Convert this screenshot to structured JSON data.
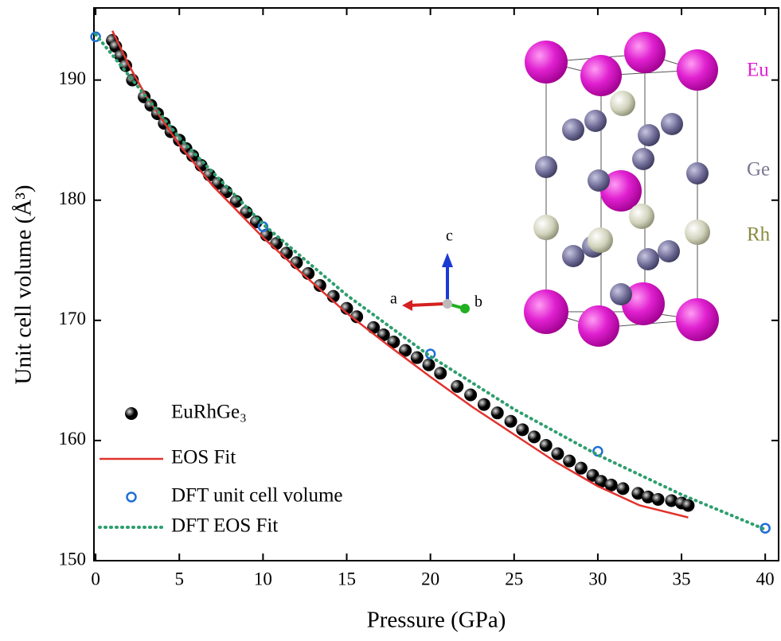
{
  "chart_data": {
    "type": "scatter",
    "xlabel": "Pressure (GPa)",
    "ylabel": "Unit  cell volume (Å³)",
    "xlim": [
      -0.1,
      40.8
    ],
    "ylim": [
      150,
      196
    ],
    "xticks": [
      0,
      5,
      10,
      15,
      20,
      25,
      30,
      35,
      40
    ],
    "yticks": [
      150,
      160,
      170,
      180,
      190
    ],
    "legend": "lower left",
    "series": [
      {
        "name": "EuRhGe₃",
        "style": "sphere",
        "color": "#000000",
        "x": [
          1.0,
          1.2,
          1.5,
          1.8,
          2.2,
          2.9,
          3.3,
          3.7,
          4.1,
          4.5,
          5.0,
          5.4,
          5.8,
          6.3,
          6.8,
          7.3,
          7.8,
          8.4,
          9.0,
          9.6,
          10.2,
          10.8,
          11.4,
          12.0,
          12.7,
          13.4,
          14.2,
          15.0,
          15.6,
          16.6,
          17.2,
          17.8,
          18.5,
          19.2,
          19.9,
          20.6,
          21.6,
          22.4,
          23.2,
          24.0,
          24.8,
          25.5,
          26.2,
          26.9,
          27.6,
          28.3,
          29.0,
          29.7,
          30.2,
          30.8,
          31.5,
          32.4,
          33.0,
          33.6,
          34.4,
          35.0,
          35.4
        ],
        "values": [
          193.3,
          192.8,
          192.0,
          191.2,
          190.0,
          188.6,
          187.9,
          187.2,
          186.4,
          185.7,
          185.0,
          184.3,
          183.7,
          182.9,
          182.1,
          181.4,
          180.7,
          179.9,
          179.0,
          178.2,
          177.1,
          176.4,
          175.6,
          174.8,
          173.9,
          172.9,
          172.0,
          171.0,
          170.3,
          169.4,
          168.8,
          168.2,
          167.5,
          166.9,
          166.3,
          165.6,
          164.5,
          163.8,
          163.0,
          162.3,
          161.6,
          160.9,
          160.3,
          159.6,
          158.9,
          158.3,
          157.7,
          157.1,
          156.6,
          156.3,
          156.0,
          155.6,
          155.3,
          155.1,
          155.0,
          154.8,
          154.6
        ]
      },
      {
        "name": "EOS Fit",
        "style": "line",
        "color": "#e0332f",
        "x": [
          1,
          2,
          3,
          5,
          7,
          10,
          12.5,
          15,
          17.5,
          20,
          22.5,
          25,
          27.5,
          30,
          32.5,
          35.4
        ],
        "values": [
          194.1,
          191.2,
          188.7,
          184.6,
          181.2,
          176.9,
          173.7,
          170.6,
          167.9,
          165.3,
          162.8,
          160.5,
          158.2,
          156.2,
          154.6,
          153.6
        ]
      },
      {
        "name": "DFT unit cell volume",
        "style": "open-circle",
        "color": "#1f6fd6",
        "x": [
          0,
          10,
          20,
          30,
          40
        ],
        "values": [
          193.6,
          177.8,
          167.2,
          159.1,
          152.7
        ]
      },
      {
        "name": "DFT EOS Fit",
        "style": "dotted",
        "color": "#2e9e6e",
        "x": [
          0,
          5,
          10,
          15,
          20,
          25,
          30,
          35,
          40
        ],
        "values": [
          193.8,
          185.2,
          178.0,
          172.1,
          167.0,
          162.6,
          158.8,
          155.5,
          152.6
        ]
      }
    ],
    "annotations": {
      "axes": [
        "a",
        "b",
        "c"
      ],
      "atoms": [
        "Eu",
        "Ge",
        "Rh"
      ]
    }
  }
}
